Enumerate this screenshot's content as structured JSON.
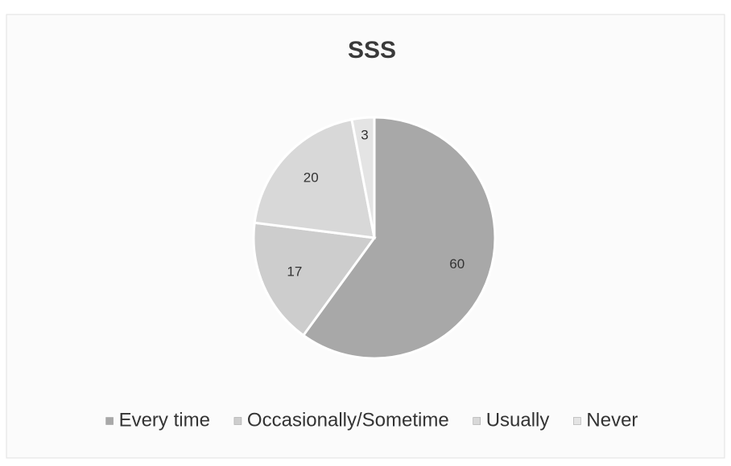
{
  "chart_data": {
    "type": "pie",
    "title": "SSS",
    "categories": [
      "Every time",
      "Occasionally/Sometime",
      "Usually",
      "Never"
    ],
    "values": [
      60,
      17,
      20,
      3
    ],
    "colors": [
      "#a8a8a8",
      "#cdcdcd",
      "#d8d8d8",
      "#e4e4e4"
    ],
    "legend": "bottom"
  }
}
